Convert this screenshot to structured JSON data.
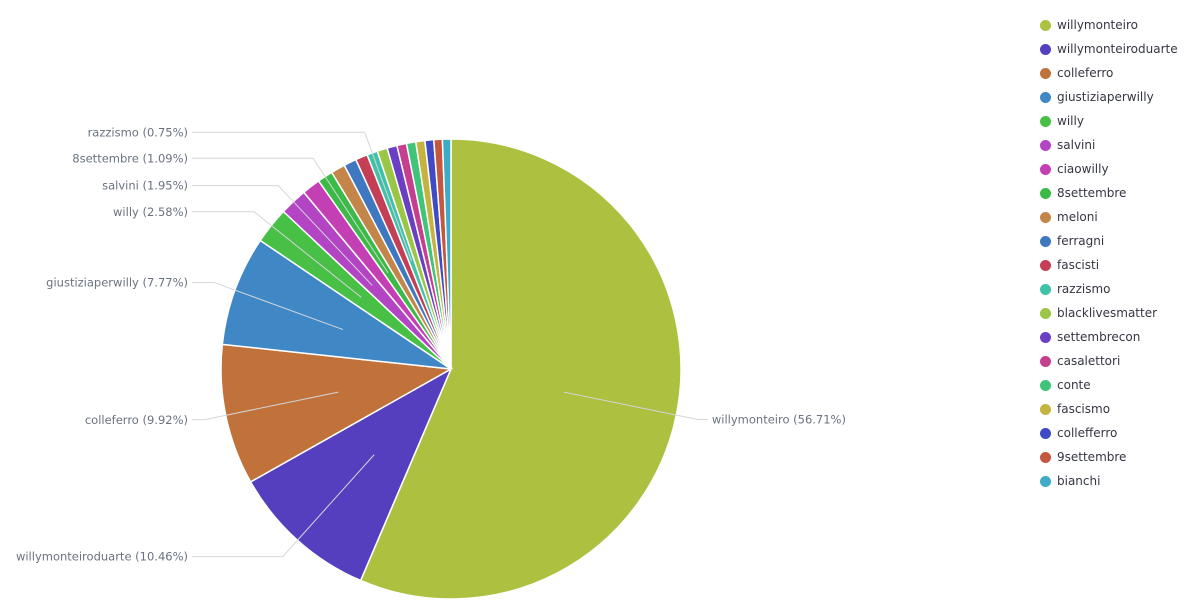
{
  "chart_data": {
    "type": "pie",
    "start_angle_deg": 0,
    "direction": "clockwise",
    "legend_position": "top-right",
    "slices": [
      {
        "name": "willymonteiro",
        "value": 56.71,
        "label": "willymonteiro (56.71%)",
        "color": "#adc040"
      },
      {
        "name": "willymonteiroduarte",
        "value": 10.46,
        "label": "willymonteiroduarte (10.46%)",
        "color": "#553fbf"
      },
      {
        "name": "colleferro",
        "value": 9.92,
        "label": "colleferro (9.92%)",
        "color": "#c0723a"
      },
      {
        "name": "giustiziaperwilly",
        "value": 7.77,
        "label": "giustiziaperwilly (7.77%)",
        "color": "#3f88c5"
      },
      {
        "name": "willy",
        "value": 2.58,
        "label": "willy (2.58%)",
        "color": "#48bf45"
      },
      {
        "name": "salvini",
        "value": 1.95,
        "label": "salvini (1.95%)",
        "color": "#b344c4"
      },
      {
        "name": "ciaowilly",
        "value": 1.3,
        "label": "",
        "color": "#c43fb4"
      },
      {
        "name": "8settembre",
        "value": 1.09,
        "label": "8settembre (1.09%)",
        "color": "#3bbb45"
      },
      {
        "name": "meloni",
        "value": 1.0,
        "label": "",
        "color": "#c4854a"
      },
      {
        "name": "ferragni",
        "value": 0.9,
        "label": "",
        "color": "#3f78c0"
      },
      {
        "name": "fascisti",
        "value": 0.85,
        "label": "",
        "color": "#c43f55"
      },
      {
        "name": "razzismo",
        "value": 0.75,
        "label": "razzismo (0.75%)",
        "color": "#3fc2a8"
      },
      {
        "name": "blacklivesmatter",
        "value": 0.72,
        "label": "",
        "color": "#9bc545"
      },
      {
        "name": "settembrecon",
        "value": 0.7,
        "label": "",
        "color": "#6a3fc4"
      },
      {
        "name": "casalettori",
        "value": 0.68,
        "label": "",
        "color": "#c43f8f"
      },
      {
        "name": "conte",
        "value": 0.66,
        "label": "",
        "color": "#3fc47a"
      },
      {
        "name": "fascismo",
        "value": 0.64,
        "label": "",
        "color": "#c4b43f"
      },
      {
        "name": "collefferro",
        "value": 0.62,
        "label": "",
        "color": "#3f4ac4"
      },
      {
        "name": "9settembre",
        "value": 0.6,
        "label": "",
        "color": "#c4573f"
      },
      {
        "name": "bianchi",
        "value": 0.6,
        "label": "",
        "color": "#3fabc4"
      }
    ]
  }
}
